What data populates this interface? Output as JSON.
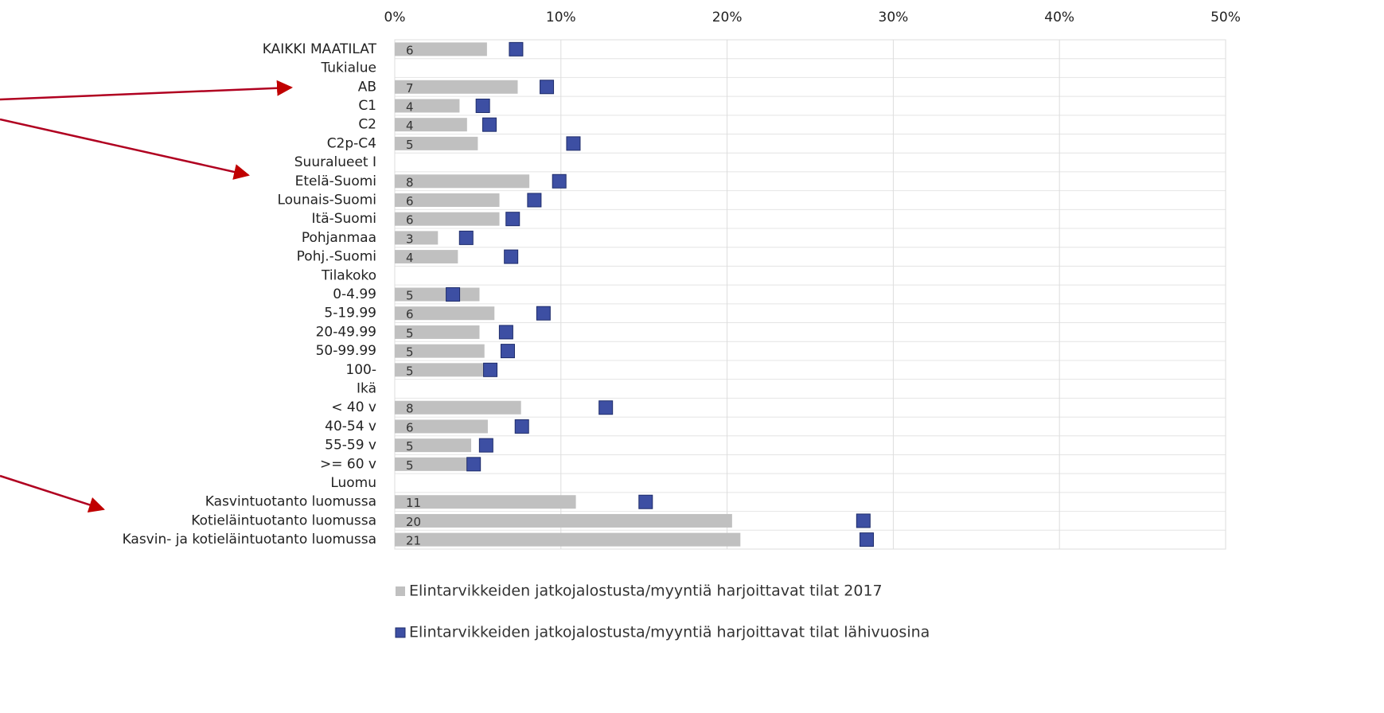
{
  "chart_data": {
    "type": "bar_marker",
    "categories": [
      "KAIKKI MAATILAT",
      "Tukialue",
      "AB",
      "C1",
      "C2",
      "C2p-C4",
      "Suuralueet I",
      "Etelä-Suomi",
      "Lounais-Suomi",
      "Itä-Suomi",
      "Pohjanmaa",
      "Pohj.-Suomi",
      "Tilakoko",
      "0-4.99",
      "5-19.99",
      "20-49.99",
      "50-99.99",
      "100-",
      "Ikä",
      "< 40 v",
      "40-54 v",
      "55-59 v",
      ">= 60 v",
      "Luomu",
      "Kasvintuotanto luomussa",
      "Kotieläintuotanto luomussa",
      "Kasvin- ja kotieläintuotanto luomussa"
    ],
    "series": [
      {
        "name": "Elintarvikkeiden jatkojalostusta/myyntiä harjoittavat tilat 2017",
        "color": "#c0c0c0",
        "values": [
          5.55,
          null,
          7.4,
          3.9,
          4.35,
          5.0,
          null,
          8.1,
          6.3,
          6.3,
          2.6,
          3.8,
          null,
          5.1,
          6.0,
          5.1,
          5.4,
          5.4,
          null,
          7.6,
          5.6,
          4.6,
          4.5,
          null,
          10.9,
          20.3,
          20.8
        ],
        "value_labels": [
          "6",
          null,
          "7",
          "4",
          "4",
          "5",
          null,
          "8",
          "6",
          "6",
          "3",
          "4",
          null,
          "5",
          "6",
          "5",
          "5",
          "5",
          null,
          "8",
          "6",
          "5",
          "5",
          null,
          "11",
          "20",
          "21"
        ]
      },
      {
        "name": "Elintarvikkeiden jatkojalostusta/myyntiä harjoittavat tilat lähivuosina",
        "color": "#3d4fa3",
        "values": [
          7.3,
          null,
          9.15,
          5.3,
          5.7,
          10.75,
          null,
          9.9,
          8.4,
          7.1,
          4.3,
          7.0,
          null,
          3.5,
          8.95,
          6.7,
          6.8,
          5.75,
          null,
          12.7,
          7.65,
          5.5,
          4.75,
          null,
          15.1,
          28.2,
          28.4
        ]
      }
    ],
    "xlim": [
      0,
      50
    ],
    "xticks": [
      {
        "value": 0,
        "label": "0%"
      },
      {
        "value": 10,
        "label": "10%"
      },
      {
        "value": 20,
        "label": "20%"
      },
      {
        "value": 30,
        "label": "30%"
      },
      {
        "value": 40,
        "label": "40%"
      },
      {
        "value": 50,
        "label": "50%"
      }
    ],
    "grid": true
  }
}
